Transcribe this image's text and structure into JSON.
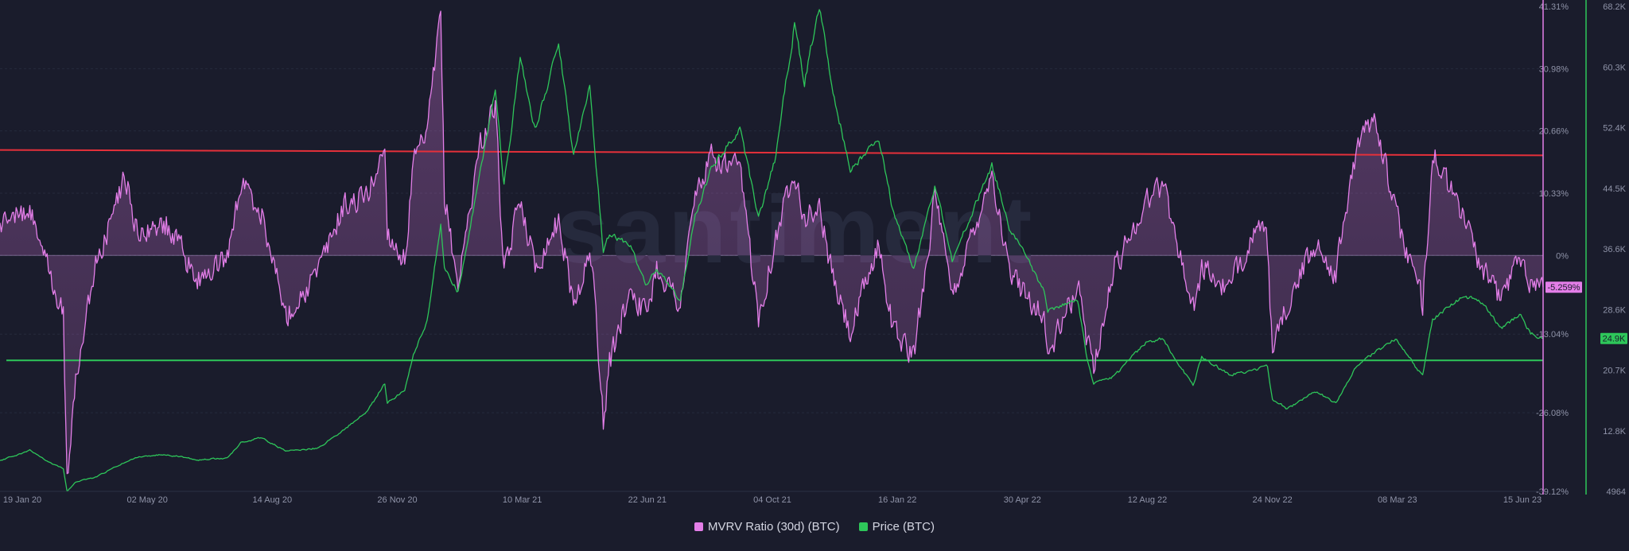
{
  "watermark": "santiment",
  "legend": [
    {
      "label": "MVRV Ratio (30d) (BTC)",
      "color": "#e37ee8"
    },
    {
      "label": "Price (BTC)",
      "color": "#2ec65a"
    }
  ],
  "current_labels": {
    "mvrv": "-5.259%",
    "price": "24.9K"
  },
  "chart_data": {
    "type": "line",
    "x_ticks": [
      "19 Jan 20",
      "02 May 20",
      "14 Aug 20",
      "26 Nov 20",
      "10 Mar 21",
      "22 Jun 21",
      "04 Oct 21",
      "16 Jan 22",
      "30 Apr 22",
      "12 Aug 22",
      "24 Nov 22",
      "08 Mar 23",
      "15 Jun 23"
    ],
    "x_range": [
      "2020-01-19",
      "2023-06-15"
    ],
    "mvrv_axis": {
      "ticks": [
        "41.31%",
        "30.98%",
        "20.66%",
        "10.33%",
        "0%",
        "-13.04%",
        "-26.08%",
        "-39.12%"
      ],
      "range": [
        -39.12,
        41.31
      ],
      "color": "#e37ee8"
    },
    "price_axis": {
      "ticks": [
        "68.2K",
        "60.3K",
        "52.4K",
        "44.5K",
        "36.6K",
        "28.6K",
        "20.7K",
        "12.8K",
        "4964"
      ],
      "range": [
        4964,
        68200
      ],
      "color": "#2ec65a"
    },
    "reference_lines": [
      {
        "series": "MVRV Ratio (30d) (BTC)",
        "from": 17.5,
        "to": 16.6,
        "color": "#e5303a"
      },
      {
        "series": "MVRV Ratio (30d) (BTC)",
        "value": -17.4,
        "color": "#2ec65a"
      }
    ],
    "series": [
      {
        "name": "Price (BTC)",
        "axis": "price",
        "color": "#2ec65a",
        "points": [
          [
            "2020-01-19",
            9000
          ],
          [
            "2020-02-12",
            10300
          ],
          [
            "2020-03-01",
            8600
          ],
          [
            "2020-03-10",
            7900
          ],
          [
            "2020-03-13",
            4964
          ],
          [
            "2020-03-20",
            6200
          ],
          [
            "2020-04-05",
            6800
          ],
          [
            "2020-04-29",
            8800
          ],
          [
            "2020-05-10",
            9500
          ],
          [
            "2020-06-01",
            9800
          ],
          [
            "2020-06-27",
            9100
          ],
          [
            "2020-07-20",
            9300
          ],
          [
            "2020-07-31",
            11300
          ],
          [
            "2020-08-17",
            12000
          ],
          [
            "2020-09-05",
            10200
          ],
          [
            "2020-10-01",
            10600
          ],
          [
            "2020-10-21",
            12900
          ],
          [
            "2020-11-10",
            15400
          ],
          [
            "2020-11-24",
            19000
          ],
          [
            "2020-11-26",
            16500
          ],
          [
            "2020-12-10",
            18200
          ],
          [
            "2020-12-17",
            23000
          ],
          [
            "2020-12-28",
            27000
          ],
          [
            "2021-01-08",
            40000
          ],
          [
            "2021-01-11",
            34000
          ],
          [
            "2021-01-22",
            31000
          ],
          [
            "2021-02-08",
            46000
          ],
          [
            "2021-02-21",
            57500
          ],
          [
            "2021-02-28",
            45000
          ],
          [
            "2021-03-13",
            61000
          ],
          [
            "2021-03-25",
            52000
          ],
          [
            "2021-04-13",
            63400
          ],
          [
            "2021-04-25",
            49000
          ],
          [
            "2021-05-08",
            58000
          ],
          [
            "2021-05-12",
            50000
          ],
          [
            "2021-05-19",
            36000
          ],
          [
            "2021-05-24",
            38500
          ],
          [
            "2021-06-10",
            37000
          ],
          [
            "2021-06-22",
            31800
          ],
          [
            "2021-07-01",
            34000
          ],
          [
            "2021-07-20",
            29800
          ],
          [
            "2021-08-01",
            41000
          ],
          [
            "2021-08-14",
            47000
          ],
          [
            "2021-09-06",
            52500
          ],
          [
            "2021-09-21",
            40500
          ],
          [
            "2021-10-04",
            48000
          ],
          [
            "2021-10-20",
            66000
          ],
          [
            "2021-10-28",
            58500
          ],
          [
            "2021-11-09",
            68200
          ],
          [
            "2021-11-20",
            57000
          ],
          [
            "2021-12-04",
            47000
          ],
          [
            "2021-12-27",
            51000
          ],
          [
            "2022-01-07",
            41800
          ],
          [
            "2022-01-24",
            34000
          ],
          [
            "2022-02-10",
            45000
          ],
          [
            "2022-02-24",
            35000
          ],
          [
            "2022-03-28",
            47500
          ],
          [
            "2022-04-11",
            39500
          ],
          [
            "2022-05-09",
            31000
          ],
          [
            "2022-05-12",
            28500
          ],
          [
            "2022-06-05",
            30000
          ],
          [
            "2022-06-13",
            22000
          ],
          [
            "2022-06-18",
            18900
          ],
          [
            "2022-07-05",
            20000
          ],
          [
            "2022-07-30",
            24400
          ],
          [
            "2022-08-13",
            24800
          ],
          [
            "2022-09-06",
            18800
          ],
          [
            "2022-09-13",
            22500
          ],
          [
            "2022-10-05",
            20200
          ],
          [
            "2022-10-26",
            20800
          ],
          [
            "2022-11-05",
            21300
          ],
          [
            "2022-11-09",
            17000
          ],
          [
            "2022-11-21",
            15700
          ],
          [
            "2022-12-14",
            18000
          ],
          [
            "2022-12-30",
            16500
          ],
          [
            "2023-01-14",
            21000
          ],
          [
            "2023-01-30",
            23000
          ],
          [
            "2023-02-16",
            24800
          ],
          [
            "2023-03-10",
            20000
          ],
          [
            "2023-03-18",
            27500
          ],
          [
            "2023-04-13",
            30500
          ],
          [
            "2023-04-28",
            29300
          ],
          [
            "2023-05-12",
            26200
          ],
          [
            "2023-05-28",
            28000
          ],
          [
            "2023-06-05",
            25600
          ],
          [
            "2023-06-15",
            24900
          ]
        ]
      },
      {
        "name": "MVRV Ratio (30d) (BTC)",
        "axis": "mvrv",
        "color": "#e37ee8",
        "points": [
          [
            "2020-01-19",
            5
          ],
          [
            "2020-02-12",
            8
          ],
          [
            "2020-03-01",
            -4
          ],
          [
            "2020-03-10",
            -10
          ],
          [
            "2020-03-13",
            -38
          ],
          [
            "2020-03-20",
            -20
          ],
          [
            "2020-04-05",
            -2
          ],
          [
            "2020-04-29",
            13
          ],
          [
            "2020-05-10",
            3
          ],
          [
            "2020-06-01",
            5
          ],
          [
            "2020-06-27",
            -4
          ],
          [
            "2020-07-20",
            0
          ],
          [
            "2020-07-31",
            12
          ],
          [
            "2020-08-17",
            7
          ],
          [
            "2020-09-05",
            -10
          ],
          [
            "2020-10-01",
            -3
          ],
          [
            "2020-10-21",
            8
          ],
          [
            "2020-11-10",
            10
          ],
          [
            "2020-11-24",
            18
          ],
          [
            "2020-11-26",
            4
          ],
          [
            "2020-12-10",
            -1
          ],
          [
            "2020-12-17",
            15
          ],
          [
            "2020-12-28",
            20
          ],
          [
            "2021-01-08",
            40
          ],
          [
            "2021-01-11",
            10
          ],
          [
            "2021-01-22",
            -5
          ],
          [
            "2021-02-08",
            18
          ],
          [
            "2021-02-21",
            25
          ],
          [
            "2021-02-28",
            -4
          ],
          [
            "2021-03-13",
            10
          ],
          [
            "2021-03-25",
            -2
          ],
          [
            "2021-04-13",
            6
          ],
          [
            "2021-04-25",
            -8
          ],
          [
            "2021-05-08",
            0
          ],
          [
            "2021-05-12",
            -6
          ],
          [
            "2021-05-19",
            -28
          ],
          [
            "2021-05-24",
            -18
          ],
          [
            "2021-06-10",
            -5
          ],
          [
            "2021-06-22",
            -10
          ],
          [
            "2021-07-01",
            -2
          ],
          [
            "2021-07-20",
            -8
          ],
          [
            "2021-08-01",
            10
          ],
          [
            "2021-08-14",
            16
          ],
          [
            "2021-09-06",
            14
          ],
          [
            "2021-09-21",
            -10
          ],
          [
            "2021-10-04",
            2
          ],
          [
            "2021-10-20",
            15
          ],
          [
            "2021-10-28",
            6
          ],
          [
            "2021-11-09",
            8
          ],
          [
            "2021-11-20",
            -4
          ],
          [
            "2021-12-04",
            -13
          ],
          [
            "2021-12-27",
            2
          ],
          [
            "2022-01-07",
            -12
          ],
          [
            "2022-01-24",
            -17
          ],
          [
            "2022-02-10",
            10
          ],
          [
            "2022-02-24",
            -7
          ],
          [
            "2022-03-28",
            14
          ],
          [
            "2022-04-11",
            -3
          ],
          [
            "2022-05-09",
            -10
          ],
          [
            "2022-05-12",
            -17
          ],
          [
            "2022-06-05",
            -5
          ],
          [
            "2022-06-13",
            -14
          ],
          [
            "2022-06-18",
            -18
          ],
          [
            "2022-07-05",
            -2
          ],
          [
            "2022-07-30",
            9
          ],
          [
            "2022-08-13",
            12
          ],
          [
            "2022-09-06",
            -9
          ],
          [
            "2022-09-13",
            -2
          ],
          [
            "2022-10-05",
            -6
          ],
          [
            "2022-10-26",
            5
          ],
          [
            "2022-11-05",
            2
          ],
          [
            "2022-11-09",
            -17
          ],
          [
            "2022-11-21",
            -8
          ],
          [
            "2022-12-14",
            2
          ],
          [
            "2022-12-30",
            -3
          ],
          [
            "2023-01-14",
            16
          ],
          [
            "2023-01-30",
            24
          ],
          [
            "2023-02-16",
            7
          ],
          [
            "2023-03-10",
            -8
          ],
          [
            "2023-03-18",
            17
          ],
          [
            "2023-04-13",
            6
          ],
          [
            "2023-04-28",
            -3
          ],
          [
            "2023-05-12",
            -7
          ],
          [
            "2023-05-28",
            0
          ],
          [
            "2023-06-05",
            -4
          ],
          [
            "2023-06-15",
            -5.259
          ]
        ]
      }
    ]
  }
}
